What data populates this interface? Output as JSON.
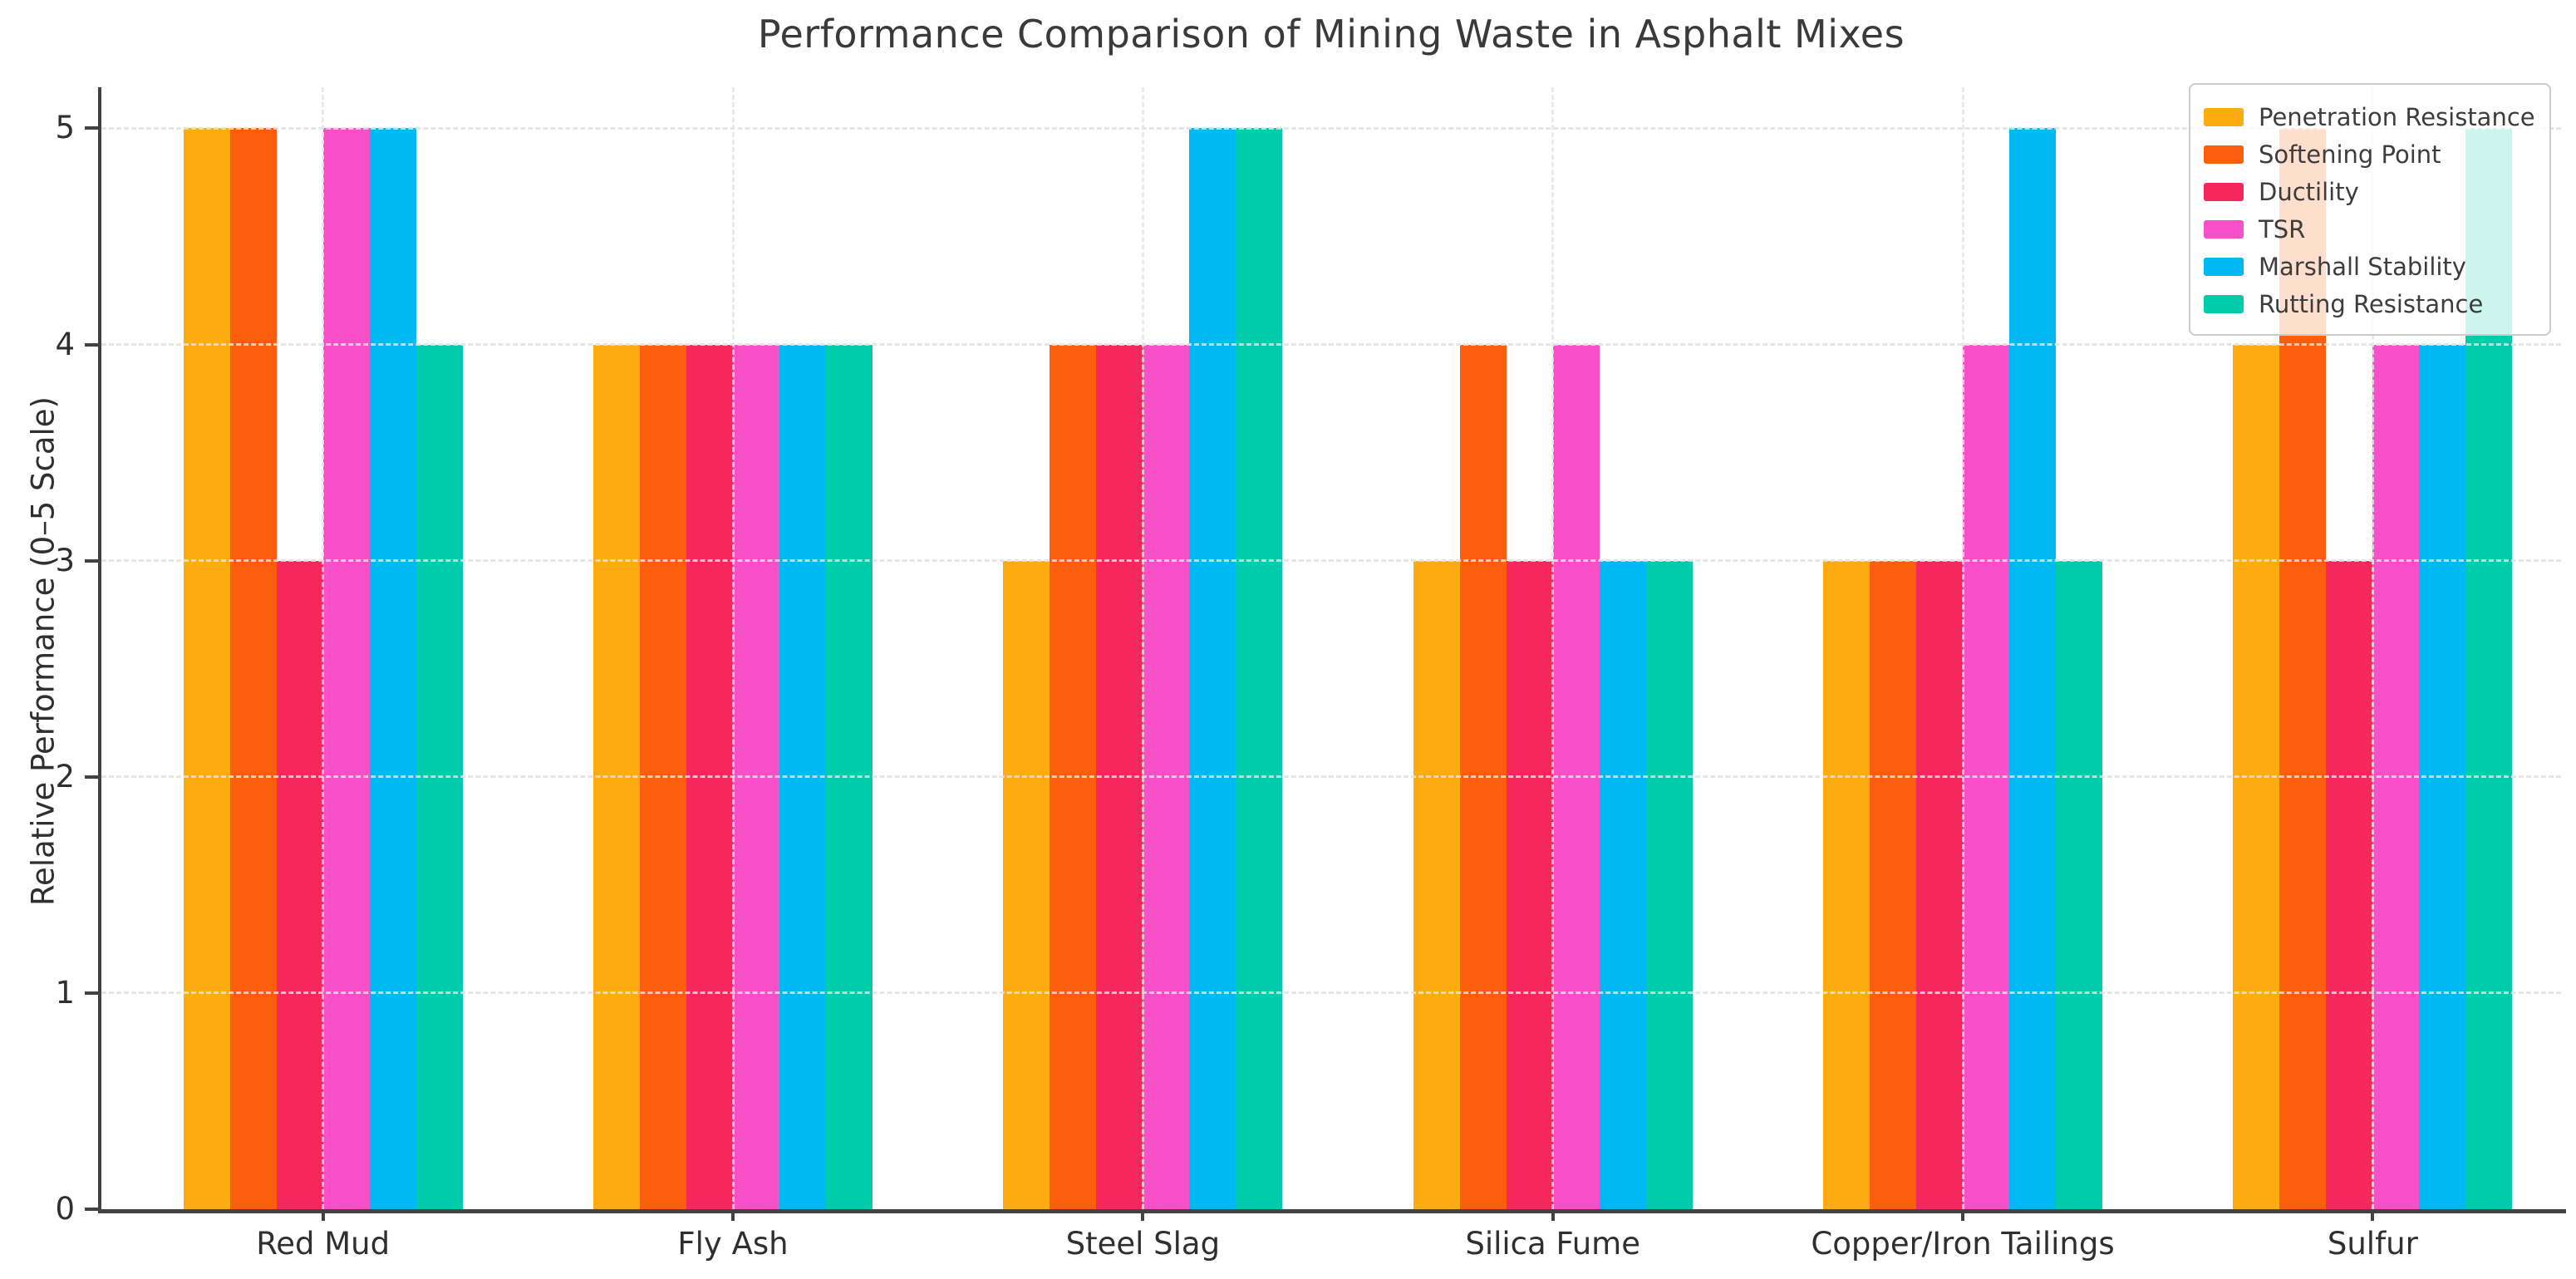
{
  "title": "Performance Comparison of Mining Waste in Asphalt Mixes",
  "chart_data": {
    "type": "bar",
    "title": "Performance Comparison of Mining Waste in Asphalt Mixes",
    "xlabel": "",
    "ylabel": "Relative Performance (0–5 Scale)",
    "ylim": [
      0,
      5.19
    ],
    "yticks": [
      0,
      1,
      2,
      3,
      4,
      5
    ],
    "grid": true,
    "grid_style": "dashed",
    "legend_position": "upper right",
    "categories": [
      "Red Mud",
      "Fly Ash",
      "Steel Slag",
      "Silica Fume",
      "Copper/Iron Tailings",
      "Sulfur"
    ],
    "series": [
      {
        "name": "Penetration Resistance",
        "color": "#FCAB10",
        "values": [
          5,
          4,
          3,
          3,
          3,
          4
        ]
      },
      {
        "name": "Softening Point",
        "color": "#FB5E0C",
        "values": [
          5,
          4,
          4,
          4,
          3,
          5
        ]
      },
      {
        "name": "Ductility",
        "color": "#F5275C",
        "values": [
          3,
          4,
          4,
          3,
          3,
          3
        ]
      },
      {
        "name": "TSR",
        "color": "#F750C8",
        "values": [
          5,
          4,
          4,
          4,
          4,
          4
        ]
      },
      {
        "name": "Marshall Stability",
        "color": "#00B9F2",
        "values": [
          5,
          4,
          5,
          3,
          5,
          4
        ]
      },
      {
        "name": "Rutting Resistance",
        "color": "#00CBAB",
        "values": [
          4,
          4,
          5,
          3,
          3,
          5
        ]
      }
    ],
    "colors": {
      "axis": "#424242",
      "grid": "#e0e0e0",
      "title_text": "#3a3a3a",
      "tick_text": "#2f2f2f",
      "legend_border": "#cccccc"
    }
  }
}
